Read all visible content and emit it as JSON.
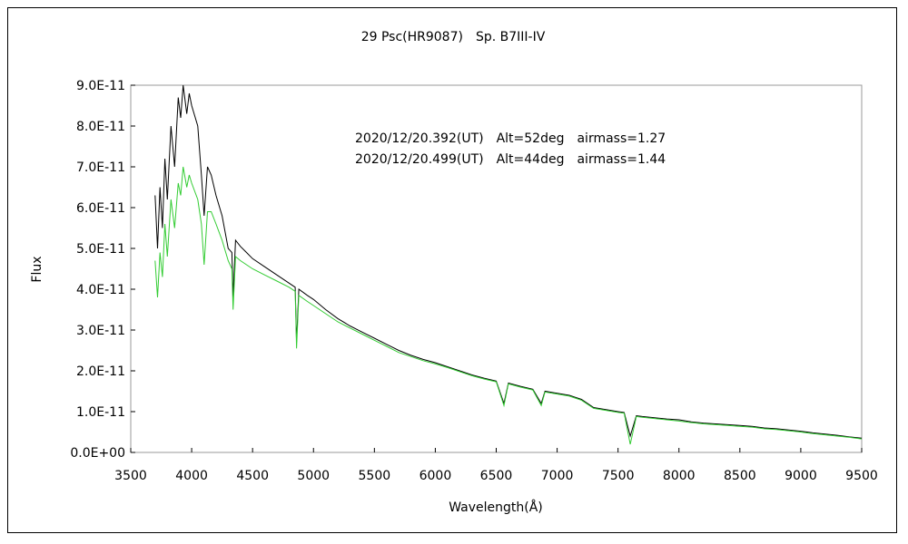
{
  "chart_data": {
    "type": "line",
    "title": "29 Psc(HR9087)　Sp. B7III-IV",
    "xlabel": "Wavelength(Å)",
    "ylabel": "Flux",
    "xlim": [
      3500,
      9500
    ],
    "ylim": [
      0,
      9e-11
    ],
    "x_ticks": [
      "3500",
      "4000",
      "4500",
      "5000",
      "5500",
      "6000",
      "6500",
      "7000",
      "7500",
      "8000",
      "8500",
      "9000",
      "9500"
    ],
    "y_ticks": [
      "0.0E+00",
      "1.0E-11",
      "2.0E-11",
      "3.0E-11",
      "4.0E-11",
      "5.0E-11",
      "6.0E-11",
      "7.0E-11",
      "8.0E-11",
      "9.0E-11"
    ],
    "grid": false,
    "legend_position": "top-center",
    "series": [
      {
        "name": "2020/12/20.392(UT)　Alt=52deg　airmass=1.27",
        "color": "#000000",
        "x": [
          3700,
          3720,
          3740,
          3760,
          3780,
          3800,
          3830,
          3860,
          3890,
          3910,
          3930,
          3960,
          3980,
          4000,
          4050,
          4080,
          4102,
          4130,
          4160,
          4200,
          4250,
          4300,
          4330,
          4340,
          4360,
          4400,
          4450,
          4500,
          4600,
          4700,
          4800,
          4850,
          4861,
          4880,
          4950,
          5000,
          5100,
          5200,
          5300,
          5400,
          5500,
          5600,
          5700,
          5800,
          5900,
          6000,
          6100,
          6200,
          6300,
          6400,
          6500,
          6563,
          6600,
          6700,
          6800,
          6870,
          6900,
          7000,
          7100,
          7200,
          7300,
          7400,
          7500,
          7550,
          7600,
          7650,
          7700,
          7800,
          7900,
          8000,
          8100,
          8200,
          8300,
          8400,
          8500,
          8600,
          8700,
          8800,
          8900,
          9000,
          9100,
          9200,
          9300,
          9400,
          9500
        ],
        "y": [
          6.3e-11,
          5e-11,
          6.5e-11,
          5.5e-11,
          7.2e-11,
          6.2e-11,
          8e-11,
          7e-11,
          8.7e-11,
          8.2e-11,
          9e-11,
          8.3e-11,
          8.8e-11,
          8.5e-11,
          8e-11,
          6.8e-11,
          5.8e-11,
          7e-11,
          6.8e-11,
          6.3e-11,
          5.8e-11,
          5e-11,
          4.9e-11,
          3.8e-11,
          5.2e-11,
          5.05e-11,
          4.9e-11,
          4.75e-11,
          4.55e-11,
          4.35e-11,
          4.15e-11,
          4.05e-11,
          2.7e-11,
          4e-11,
          3.85e-11,
          3.75e-11,
          3.5e-11,
          3.28e-11,
          3.1e-11,
          2.95e-11,
          2.8e-11,
          2.65e-11,
          2.5e-11,
          2.38e-11,
          2.28e-11,
          2.2e-11,
          2.1e-11,
          2e-11,
          1.9e-11,
          1.82e-11,
          1.75e-11,
          1.2e-11,
          1.7e-11,
          1.62e-11,
          1.55e-11,
          1.2e-11,
          1.5e-11,
          1.45e-11,
          1.4e-11,
          1.3e-11,
          1.1e-11,
          1.05e-11,
          1e-11,
          9.8e-12,
          4e-12,
          9e-12,
          8.8e-12,
          8.5e-12,
          8.2e-12,
          8e-12,
          7.5e-12,
          7.2e-12,
          7e-12,
          6.8e-12,
          6.6e-12,
          6.4e-12,
          6e-12,
          5.8e-12,
          5.5e-12,
          5.2e-12,
          4.8e-12,
          4.5e-12,
          4.2e-12,
          3.8e-12,
          3.5e-12
        ]
      },
      {
        "name": "2020/12/20.499(UT)　Alt=44deg　airmass=1.44",
        "color": "#33cc33",
        "x": [
          3700,
          3720,
          3740,
          3760,
          3780,
          3800,
          3830,
          3860,
          3890,
          3910,
          3930,
          3960,
          3980,
          4000,
          4050,
          4080,
          4102,
          4130,
          4160,
          4200,
          4250,
          4300,
          4330,
          4340,
          4360,
          4400,
          4450,
          4500,
          4600,
          4700,
          4800,
          4850,
          4861,
          4880,
          4950,
          5000,
          5100,
          5200,
          5300,
          5400,
          5500,
          5600,
          5700,
          5800,
          5900,
          6000,
          6100,
          6200,
          6300,
          6400,
          6500,
          6563,
          6600,
          6700,
          6800,
          6870,
          6900,
          7000,
          7100,
          7200,
          7300,
          7400,
          7500,
          7550,
          7600,
          7650,
          7700,
          7800,
          7900,
          8000,
          8100,
          8200,
          8300,
          8400,
          8500,
          8600,
          8700,
          8800,
          8900,
          9000,
          9100,
          9200,
          9300,
          9400,
          9500
        ],
        "y": [
          4.7e-11,
          3.8e-11,
          4.9e-11,
          4.3e-11,
          5.6e-11,
          4.8e-11,
          6.2e-11,
          5.5e-11,
          6.6e-11,
          6.3e-11,
          7e-11,
          6.5e-11,
          6.8e-11,
          6.6e-11,
          6.2e-11,
          5.6e-11,
          4.6e-11,
          5.9e-11,
          5.9e-11,
          5.6e-11,
          5.2e-11,
          4.7e-11,
          4.5e-11,
          3.5e-11,
          4.8e-11,
          4.7e-11,
          4.6e-11,
          4.5e-11,
          4.35e-11,
          4.2e-11,
          4.05e-11,
          3.95e-11,
          2.55e-11,
          3.85e-11,
          3.7e-11,
          3.6e-11,
          3.4e-11,
          3.2e-11,
          3.05e-11,
          2.9e-11,
          2.75e-11,
          2.6e-11,
          2.45e-11,
          2.35e-11,
          2.25e-11,
          2.17e-11,
          2.08e-11,
          1.98e-11,
          1.88e-11,
          1.8e-11,
          1.73e-11,
          1.15e-11,
          1.68e-11,
          1.6e-11,
          1.53e-11,
          1.15e-11,
          1.48e-11,
          1.43e-11,
          1.38e-11,
          1.28e-11,
          1.08e-11,
          1.03e-11,
          9.8e-12,
          9.6e-12,
          2e-12,
          8.8e-12,
          8.6e-12,
          8.3e-12,
          8e-12,
          7.7e-12,
          7.3e-12,
          7e-12,
          6.8e-12,
          6.6e-12,
          6.4e-12,
          6.2e-12,
          5.8e-12,
          5.6e-12,
          5.3e-12,
          5e-12,
          4.6e-12,
          4.3e-12,
          4e-12,
          3.7e-12,
          3.3e-12
        ]
      }
    ]
  }
}
